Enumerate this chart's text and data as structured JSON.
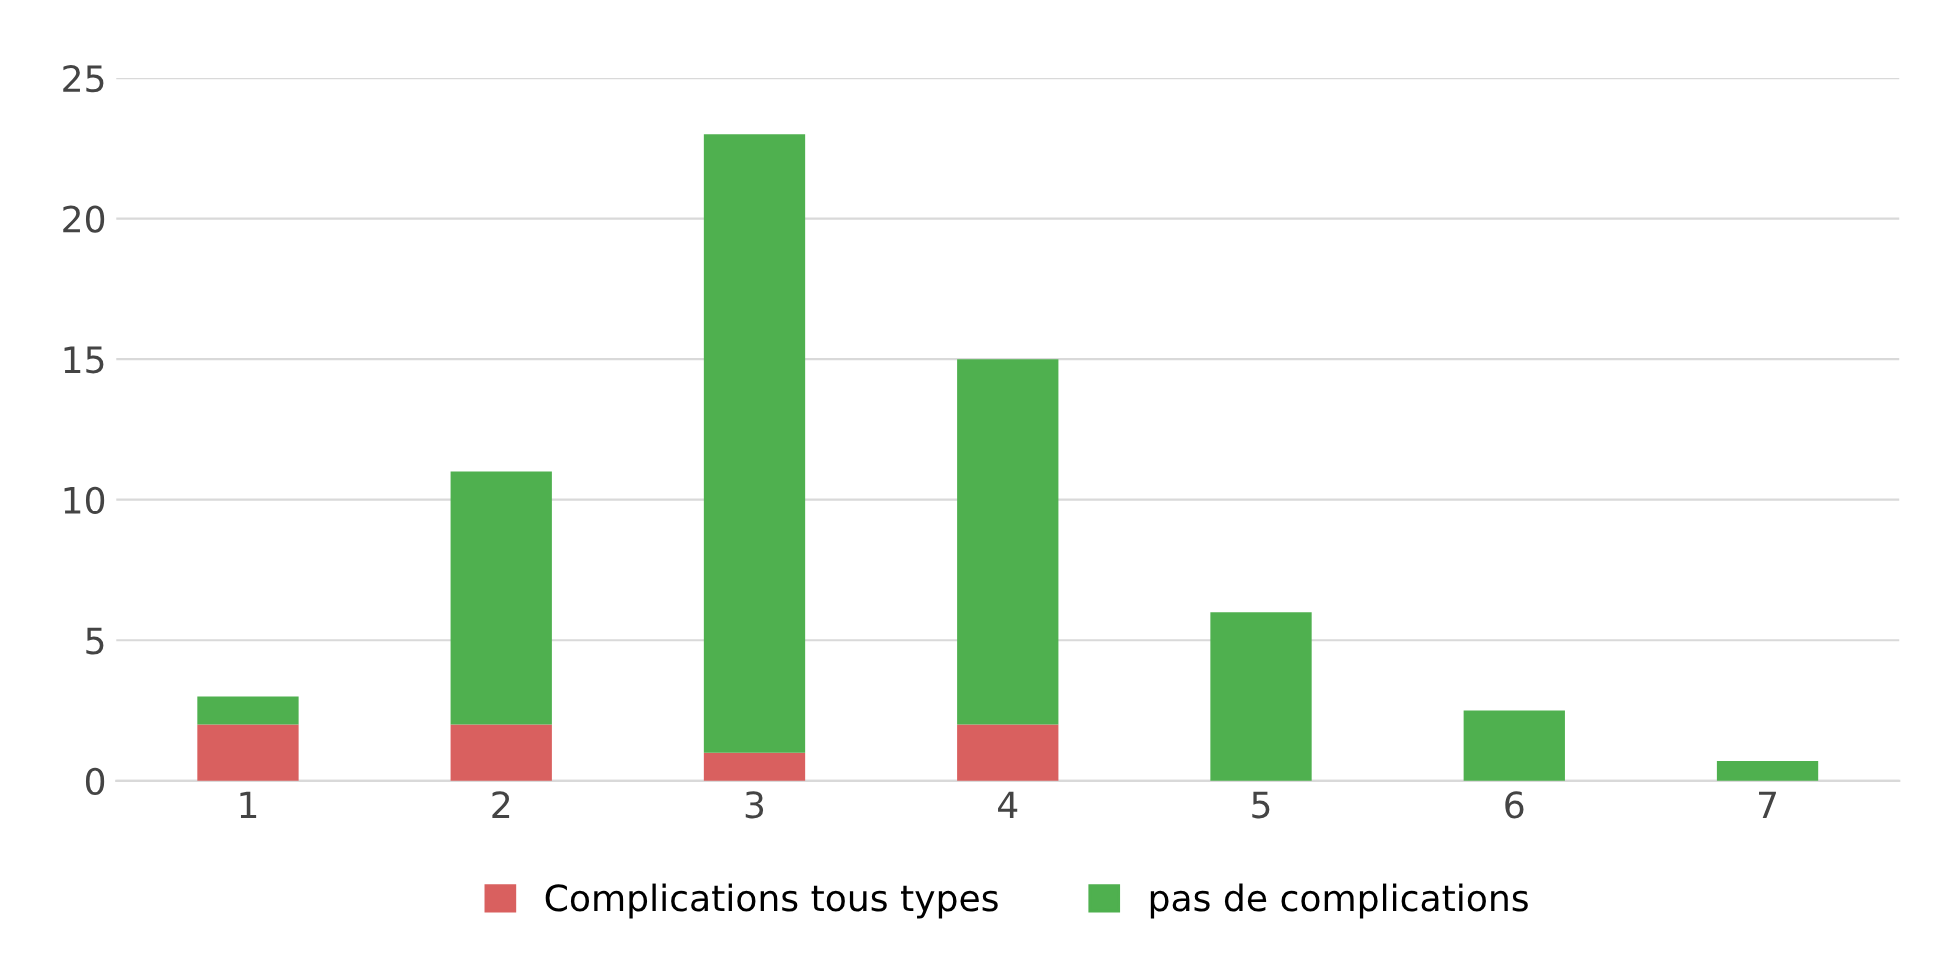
{
  "chart_data": {
    "type": "bar",
    "stacked": true,
    "categories": [
      "1",
      "2",
      "3",
      "4",
      "5",
      "6",
      "7"
    ],
    "series": [
      {
        "name": "Complications tous types",
        "color": "#d9605f",
        "values": [
          2,
          2,
          1,
          2,
          0,
          0,
          0
        ]
      },
      {
        "name": "pas de complications",
        "color": "#4fb04f",
        "values": [
          1,
          9,
          22,
          13,
          6,
          2.5,
          0.7
        ]
      }
    ],
    "ylim": [
      0,
      25
    ],
    "yticks": [
      0,
      5,
      10,
      15,
      20,
      25
    ],
    "grid": "y",
    "legend": "bottom"
  }
}
